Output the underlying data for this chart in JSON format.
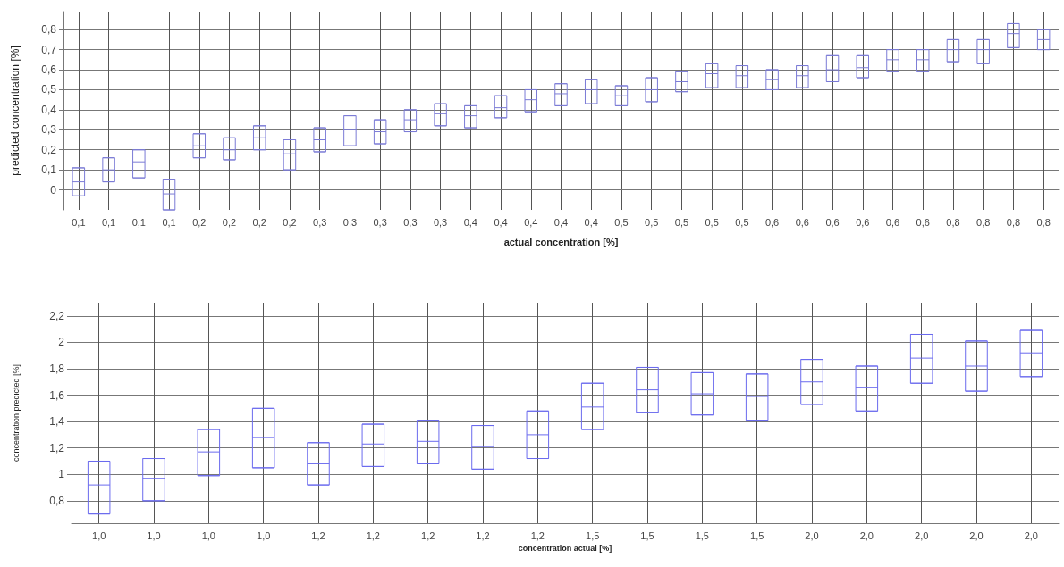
{
  "chart_data": [
    {
      "type": "box",
      "xlabel": "actual concentration [%]",
      "ylabel": "predicted concentration [%]",
      "categories": [
        "0,1",
        "0,1",
        "0,1",
        "0,1",
        "0,2",
        "0,2",
        "0,2",
        "0,2",
        "0,3",
        "0,3",
        "0,3",
        "0,3",
        "0,3",
        "0,4",
        "0,4",
        "0,4",
        "0,4",
        "0,4",
        "0,5",
        "0,5",
        "0,5",
        "0,5",
        "0,5",
        "0,6",
        "0,6",
        "0,6",
        "0,6",
        "0,6",
        "0,6",
        "0,8",
        "0,8",
        "0,8",
        "0,8"
      ],
      "ylim": [
        -0.1,
        0.89
      ],
      "yticks": [
        0,
        {
          "value": 0.1,
          "label": "0,1"
        },
        {
          "value": 0.2,
          "label": "0,2"
        },
        {
          "value": 0.3,
          "label": "0,3"
        },
        {
          "value": 0.4,
          "label": "0,4"
        },
        {
          "value": 0.5,
          "label": "0,5"
        },
        {
          "value": 0.6,
          "label": "0,6"
        },
        {
          "value": 0.7,
          "label": "0,7"
        },
        {
          "value": 0.8,
          "label": "0,8"
        }
      ],
      "grid": true,
      "series": [
        {
          "color": "#7b7bd6",
          "boxes": [
            {
              "low": -0.03,
              "q1": -0.03,
              "median": 0.04,
              "q3": 0.11,
              "high": 0.11
            },
            {
              "low": 0.04,
              "q1": 0.04,
              "median": 0.1,
              "q3": 0.16,
              "high": 0.16
            },
            {
              "low": 0.06,
              "q1": 0.06,
              "median": 0.14,
              "q3": 0.2,
              "high": 0.2
            },
            {
              "low": -0.1,
              "q1": -0.1,
              "median": -0.02,
              "q3": 0.05,
              "high": 0.05
            },
            {
              "low": 0.16,
              "q1": 0.16,
              "median": 0.22,
              "q3": 0.28,
              "high": 0.28
            },
            {
              "low": 0.15,
              "q1": 0.15,
              "median": 0.2,
              "q3": 0.26,
              "high": 0.26
            },
            {
              "low": 0.2,
              "q1": 0.2,
              "median": 0.26,
              "q3": 0.32,
              "high": 0.32
            },
            {
              "low": 0.1,
              "q1": 0.1,
              "median": 0.18,
              "q3": 0.25,
              "high": 0.25
            },
            {
              "low": 0.19,
              "q1": 0.19,
              "median": 0.25,
              "q3": 0.31,
              "high": 0.31
            },
            {
              "low": 0.22,
              "q1": 0.22,
              "median": 0.3,
              "q3": 0.37,
              "high": 0.37
            },
            {
              "low": 0.23,
              "q1": 0.23,
              "median": 0.29,
              "q3": 0.35,
              "high": 0.35
            },
            {
              "low": 0.29,
              "q1": 0.29,
              "median": 0.35,
              "q3": 0.4,
              "high": 0.4
            },
            {
              "low": 0.32,
              "q1": 0.32,
              "median": 0.38,
              "q3": 0.43,
              "high": 0.43
            },
            {
              "low": 0.31,
              "q1": 0.31,
              "median": 0.37,
              "q3": 0.42,
              "high": 0.42
            },
            {
              "low": 0.36,
              "q1": 0.36,
              "median": 0.41,
              "q3": 0.47,
              "high": 0.47
            },
            {
              "low": 0.39,
              "q1": 0.39,
              "median": 0.45,
              "q3": 0.5,
              "high": 0.5
            },
            {
              "low": 0.42,
              "q1": 0.42,
              "median": 0.48,
              "q3": 0.53,
              "high": 0.53
            },
            {
              "low": 0.43,
              "q1": 0.43,
              "median": 0.5,
              "q3": 0.55,
              "high": 0.55
            },
            {
              "low": 0.42,
              "q1": 0.42,
              "median": 0.47,
              "q3": 0.52,
              "high": 0.52
            },
            {
              "low": 0.44,
              "q1": 0.44,
              "median": 0.5,
              "q3": 0.56,
              "high": 0.56
            },
            {
              "low": 0.49,
              "q1": 0.49,
              "median": 0.54,
              "q3": 0.59,
              "high": 0.59
            },
            {
              "low": 0.51,
              "q1": 0.51,
              "median": 0.58,
              "q3": 0.63,
              "high": 0.63
            },
            {
              "low": 0.51,
              "q1": 0.51,
              "median": 0.57,
              "q3": 0.62,
              "high": 0.62
            },
            {
              "low": 0.5,
              "q1": 0.5,
              "median": 0.55,
              "q3": 0.6,
              "high": 0.6
            },
            {
              "low": 0.51,
              "q1": 0.51,
              "median": 0.57,
              "q3": 0.62,
              "high": 0.62
            },
            {
              "low": 0.54,
              "q1": 0.54,
              "median": 0.6,
              "q3": 0.67,
              "high": 0.67
            },
            {
              "low": 0.56,
              "q1": 0.56,
              "median": 0.61,
              "q3": 0.67,
              "high": 0.67
            },
            {
              "low": 0.59,
              "q1": 0.59,
              "median": 0.65,
              "q3": 0.7,
              "high": 0.7
            },
            {
              "low": 0.59,
              "q1": 0.59,
              "median": 0.65,
              "q3": 0.7,
              "high": 0.7
            },
            {
              "low": 0.64,
              "q1": 0.64,
              "median": 0.7,
              "q3": 0.75,
              "high": 0.75
            },
            {
              "low": 0.63,
              "q1": 0.63,
              "median": 0.7,
              "q3": 0.75,
              "high": 0.75
            },
            {
              "low": 0.71,
              "q1": 0.71,
              "median": 0.78,
              "q3": 0.83,
              "high": 0.83
            },
            {
              "low": 0.7,
              "q1": 0.7,
              "median": 0.75,
              "q3": 0.8,
              "high": 0.8
            }
          ]
        }
      ]
    },
    {
      "type": "box",
      "xlabel": "concentration actual [%]",
      "ylabel": "concentration predicted [%]",
      "categories": [
        "1,0",
        "1,0",
        "1,0",
        "1,0",
        "1,2",
        "1,2",
        "1,2",
        "1,2",
        "1,2",
        "1,5",
        "1,5",
        "1,5",
        "1,5",
        "2,0",
        "2,0",
        "2,0",
        "2,0",
        "2,0"
      ],
      "ylim": [
        0.63,
        2.3
      ],
      "yticks": [
        {
          "value": 0.8,
          "label": "0,8"
        },
        1,
        {
          "value": 1.2,
          "label": "1,2"
        },
        {
          "value": 1.4,
          "label": "1,4"
        },
        {
          "value": 1.6,
          "label": "1,6"
        },
        {
          "value": 1.8,
          "label": "1,8"
        },
        2,
        {
          "value": 2.2,
          "label": "2,2"
        }
      ],
      "grid": true,
      "series": [
        {
          "color": "#6b6bee",
          "boxes": [
            {
              "low": 0.7,
              "q1": 0.7,
              "median": 0.92,
              "q3": 1.1,
              "high": 1.1
            },
            {
              "low": 0.8,
              "q1": 0.8,
              "median": 0.97,
              "q3": 1.12,
              "high": 1.12
            },
            {
              "low": 0.99,
              "q1": 0.99,
              "median": 1.17,
              "q3": 1.34,
              "high": 1.34
            },
            {
              "low": 1.05,
              "q1": 1.05,
              "median": 1.28,
              "q3": 1.5,
              "high": 1.5
            },
            {
              "low": 0.92,
              "q1": 0.92,
              "median": 1.08,
              "q3": 1.24,
              "high": 1.24
            },
            {
              "low": 1.06,
              "q1": 1.06,
              "median": 1.23,
              "q3": 1.38,
              "high": 1.38
            },
            {
              "low": 1.08,
              "q1": 1.08,
              "median": 1.25,
              "q3": 1.41,
              "high": 1.41
            },
            {
              "low": 1.04,
              "q1": 1.04,
              "median": 1.21,
              "q3": 1.37,
              "high": 1.37
            },
            {
              "low": 1.12,
              "q1": 1.12,
              "median": 1.3,
              "q3": 1.48,
              "high": 1.48
            },
            {
              "low": 1.34,
              "q1": 1.34,
              "median": 1.51,
              "q3": 1.69,
              "high": 1.69
            },
            {
              "low": 1.47,
              "q1": 1.47,
              "median": 1.64,
              "q3": 1.81,
              "high": 1.81
            },
            {
              "low": 1.45,
              "q1": 1.45,
              "median": 1.61,
              "q3": 1.77,
              "high": 1.77
            },
            {
              "low": 1.41,
              "q1": 1.41,
              "median": 1.59,
              "q3": 1.76,
              "high": 1.76
            },
            {
              "low": 1.53,
              "q1": 1.53,
              "median": 1.7,
              "q3": 1.87,
              "high": 1.87
            },
            {
              "low": 1.48,
              "q1": 1.48,
              "median": 1.66,
              "q3": 1.82,
              "high": 1.82
            },
            {
              "low": 1.69,
              "q1": 1.69,
              "median": 1.88,
              "q3": 2.06,
              "high": 2.06
            },
            {
              "low": 1.63,
              "q1": 1.63,
              "median": 1.82,
              "q3": 2.01,
              "high": 2.01
            },
            {
              "low": 1.74,
              "q1": 1.74,
              "median": 1.92,
              "q3": 2.09,
              "high": 2.09
            }
          ]
        }
      ]
    }
  ]
}
